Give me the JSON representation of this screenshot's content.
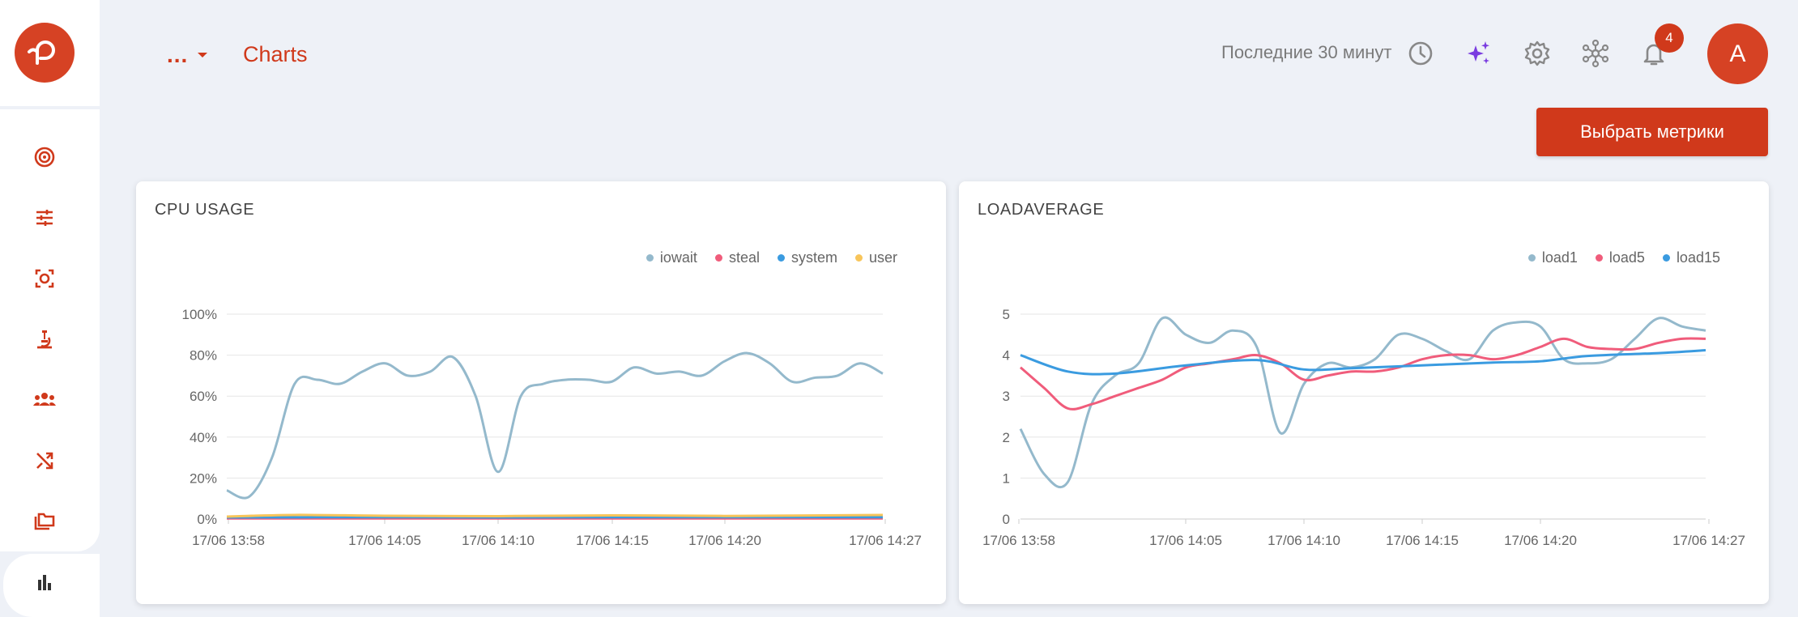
{
  "header": {
    "breadcrumb_more": "...",
    "title": "Charts",
    "time_range": "Последние 30 минут",
    "notifications_count": "4",
    "avatar_letter": "A",
    "select_metrics_label": "Выбрать метрики"
  },
  "sidebar": {
    "items": [
      {
        "icon": "target-icon"
      },
      {
        "icon": "sliders-icon"
      },
      {
        "icon": "scan-icon"
      },
      {
        "icon": "microscope-icon"
      },
      {
        "icon": "team-icon"
      },
      {
        "icon": "shuffle-icon"
      },
      {
        "icon": "folders-icon"
      },
      {
        "icon": "bar-chart-icon"
      }
    ],
    "active_index": 7
  },
  "colors": {
    "accent": "#d0391b",
    "iowait": "#94b9cc",
    "steal": "#f05c7b",
    "system": "#3a9be0",
    "user": "#f8c55a"
  },
  "chart_data": [
    {
      "type": "line",
      "title": "CPU USAGE",
      "x_ticks": [
        "17/06 13:58",
        "17/06 14:05",
        "17/06 14:10",
        "17/06 14:15",
        "17/06 14:20",
        "17/06 14:27"
      ],
      "x_range": [
        "13:58",
        "14:27"
      ],
      "y_ticks": [
        "0%",
        "20%",
        "40%",
        "60%",
        "80%",
        "100%"
      ],
      "ylim": [
        0,
        100
      ],
      "legend_position": "top-right",
      "grid": true,
      "series": [
        {
          "name": "iowait",
          "color": "#94b9cc",
          "x": [
            "13:58",
            "13:59",
            "14:00",
            "14:01",
            "14:02",
            "14:03",
            "14:04",
            "14:05",
            "14:06",
            "14:07",
            "14:08",
            "14:09",
            "14:10",
            "14:11",
            "14:12",
            "14:13",
            "14:14",
            "14:15",
            "14:16",
            "14:17",
            "14:18",
            "14:19",
            "14:20",
            "14:21",
            "14:22",
            "14:23",
            "14:24",
            "14:25",
            "14:26",
            "14:27"
          ],
          "values": [
            14,
            11,
            30,
            66,
            68,
            66,
            72,
            76,
            70,
            72,
            79,
            60,
            23,
            60,
            66,
            68,
            68,
            67,
            74,
            71,
            72,
            70,
            77,
            81,
            76,
            67,
            69,
            70,
            76,
            71
          ]
        },
        {
          "name": "steal",
          "color": "#f05c7b",
          "x": [
            "13:58",
            "14:27"
          ],
          "values": [
            0.3,
            0.3
          ]
        },
        {
          "name": "system",
          "color": "#3a9be0",
          "x": [
            "13:58",
            "14:05",
            "14:10",
            "14:15",
            "14:20",
            "14:27"
          ],
          "values": [
            0.8,
            0.9,
            0.8,
            0.9,
            0.9,
            0.9
          ]
        },
        {
          "name": "user",
          "color": "#f8c55a",
          "x": [
            "13:58",
            "14:01",
            "14:05",
            "14:10",
            "14:15",
            "14:20",
            "14:27"
          ],
          "values": [
            1.2,
            2.0,
            1.6,
            1.4,
            1.8,
            1.5,
            2.0
          ]
        }
      ]
    },
    {
      "type": "line",
      "title": "LOADAVERAGE",
      "x_ticks": [
        "17/06 13:58",
        "17/06 14:05",
        "17/06 14:10",
        "17/06 14:15",
        "17/06 14:20",
        "17/06 14:27"
      ],
      "x_range": [
        "13:58",
        "14:27"
      ],
      "y_ticks": [
        "0",
        "1",
        "2",
        "3",
        "4",
        "5"
      ],
      "ylim": [
        0,
        5
      ],
      "legend_position": "top-right",
      "grid": true,
      "series": [
        {
          "name": "load1",
          "color": "#94b9cc",
          "x": [
            "13:58",
            "13:59",
            "14:00",
            "14:01",
            "14:02",
            "14:03",
            "14:04",
            "14:05",
            "14:06",
            "14:07",
            "14:08",
            "14:09",
            "14:10",
            "14:11",
            "14:12",
            "14:13",
            "14:14",
            "14:15",
            "14:16",
            "14:17",
            "14:18",
            "14:19",
            "14:20",
            "14:21",
            "14:22",
            "14:23",
            "14:24",
            "14:25",
            "14:26",
            "14:27"
          ],
          "values": [
            2.2,
            1.1,
            0.9,
            2.8,
            3.5,
            3.8,
            4.9,
            4.5,
            4.3,
            4.6,
            4.2,
            2.1,
            3.3,
            3.8,
            3.7,
            3.9,
            4.5,
            4.4,
            4.1,
            3.9,
            4.6,
            4.8,
            4.7,
            3.9,
            3.8,
            3.9,
            4.4,
            4.9,
            4.7,
            4.6
          ]
        },
        {
          "name": "load5",
          "color": "#f05c7b",
          "x": [
            "13:58",
            "13:59",
            "14:00",
            "14:01",
            "14:02",
            "14:03",
            "14:04",
            "14:05",
            "14:06",
            "14:07",
            "14:08",
            "14:09",
            "14:10",
            "14:11",
            "14:12",
            "14:13",
            "14:14",
            "14:15",
            "14:16",
            "14:17",
            "14:18",
            "14:19",
            "14:20",
            "14:21",
            "14:22",
            "14:23",
            "14:24",
            "14:25",
            "14:26",
            "14:27"
          ],
          "values": [
            3.7,
            3.2,
            2.7,
            2.8,
            3.0,
            3.2,
            3.4,
            3.7,
            3.8,
            3.9,
            4.0,
            3.8,
            3.4,
            3.5,
            3.6,
            3.6,
            3.7,
            3.9,
            4.0,
            4.0,
            3.9,
            4.0,
            4.2,
            4.4,
            4.2,
            4.15,
            4.15,
            4.3,
            4.4,
            4.4
          ]
        },
        {
          "name": "load15",
          "color": "#3a9be0",
          "x": [
            "13:58",
            "14:00",
            "14:02",
            "14:05",
            "14:08",
            "14:10",
            "14:12",
            "14:15",
            "14:18",
            "14:20",
            "14:22",
            "14:25",
            "14:27"
          ],
          "values": [
            4.0,
            3.6,
            3.55,
            3.75,
            3.88,
            3.65,
            3.68,
            3.75,
            3.82,
            3.85,
            3.98,
            4.05,
            4.12
          ]
        }
      ]
    }
  ]
}
